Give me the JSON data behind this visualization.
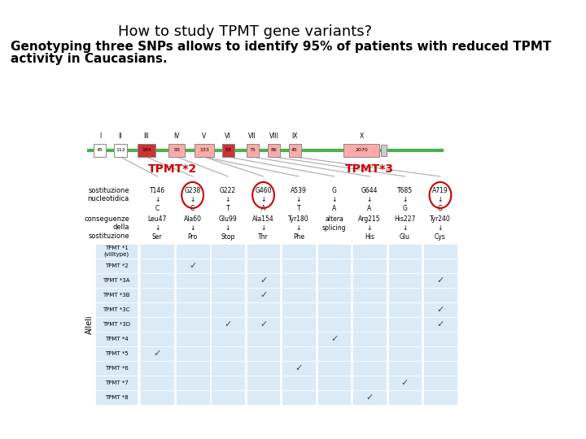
{
  "title": "How to study TPMT gene variants?",
  "subtitle_line1": "Genotyping three SNPs allows to identify 95% of patients with reduced TPMT",
  "subtitle_line2": "activity in Caucasians.",
  "background_color": "#ffffff",
  "title_fontsize": 13,
  "subtitle_fontsize": 11,
  "tpmt2_label": "TPMT*2",
  "tpmt3_label": "TPMT*3",
  "tpmt2_color": "#cc0000",
  "tpmt3_color": "#cc0000",
  "exon_labels": [
    "I",
    "II",
    "III",
    "IV",
    "V",
    "VI",
    "VII",
    "VIII",
    "IX",
    "X"
  ],
  "exon_numbers": [
    "45",
    "112",
    "184",
    "93",
    "133",
    "53",
    "75",
    "86",
    "45",
    "2070"
  ],
  "exon_colors": [
    "#ffffff",
    "#ffffff",
    "#cc3333",
    "#ffaaaa",
    "#ffaaaa",
    "#cc3333",
    "#ffaaaa",
    "#ffaaaa",
    "#ffaaaa",
    "#ffaaaa"
  ],
  "exon_border": "#888888",
  "nucl_row_label": "sostituzione\nnucleotidica",
  "conseg_row_label": "conseguenze\ndella\nsostituzione",
  "allele_label": "Alleli",
  "snp_cols": [
    "T146\n↓\nC",
    "G238\n↓\nC",
    "G222\n↓\nT",
    "G460\n↓\nA",
    "A539\n↓\nT",
    "G\n↓\nA",
    "G644\n↓\nA",
    "T685\n↓\nG",
    "A719\n↓\nG"
  ],
  "conseg_cols": [
    "Leu47\n↓\nSer",
    "Ala60\n↓\nPro",
    "Glu99\n↓\nStop",
    "Ala154\n↓\nThr",
    "Tyr180\n↓\nPhe",
    "altera\nsplicing",
    "Arg215\n↓\nHis",
    "His227\n↓\nGlu",
    "Tyr240\n↓\nCys"
  ],
  "circled_cols": [
    1,
    3,
    8
  ],
  "allele_rows": [
    {
      "name": "TPMT *1\n(villtype)",
      "checks": []
    },
    {
      "name": "TPMT *2",
      "checks": [
        1
      ]
    },
    {
      "name": "TPMT *3A",
      "checks": [
        3,
        8
      ]
    },
    {
      "name": "TPMT *3B",
      "checks": [
        3
      ]
    },
    {
      "name": "TPMT *3C",
      "checks": [
        8
      ]
    },
    {
      "name": "TPMT *3D",
      "checks": [
        2,
        3,
        8
      ]
    },
    {
      "name": "TPMT *4",
      "checks": [
        5
      ]
    },
    {
      "name": "TPMT *5",
      "checks": [
        0
      ]
    },
    {
      "name": "TPMT *6",
      "checks": [
        4
      ]
    },
    {
      "name": "TPMT *7",
      "checks": [
        7
      ]
    },
    {
      "name": "TPMT *8",
      "checks": [
        6
      ]
    }
  ],
  "table_bg_light": "#daeaf7",
  "table_bg_white": "#ffffff",
  "circle_color": "#cc0000",
  "check_color": "#444444"
}
